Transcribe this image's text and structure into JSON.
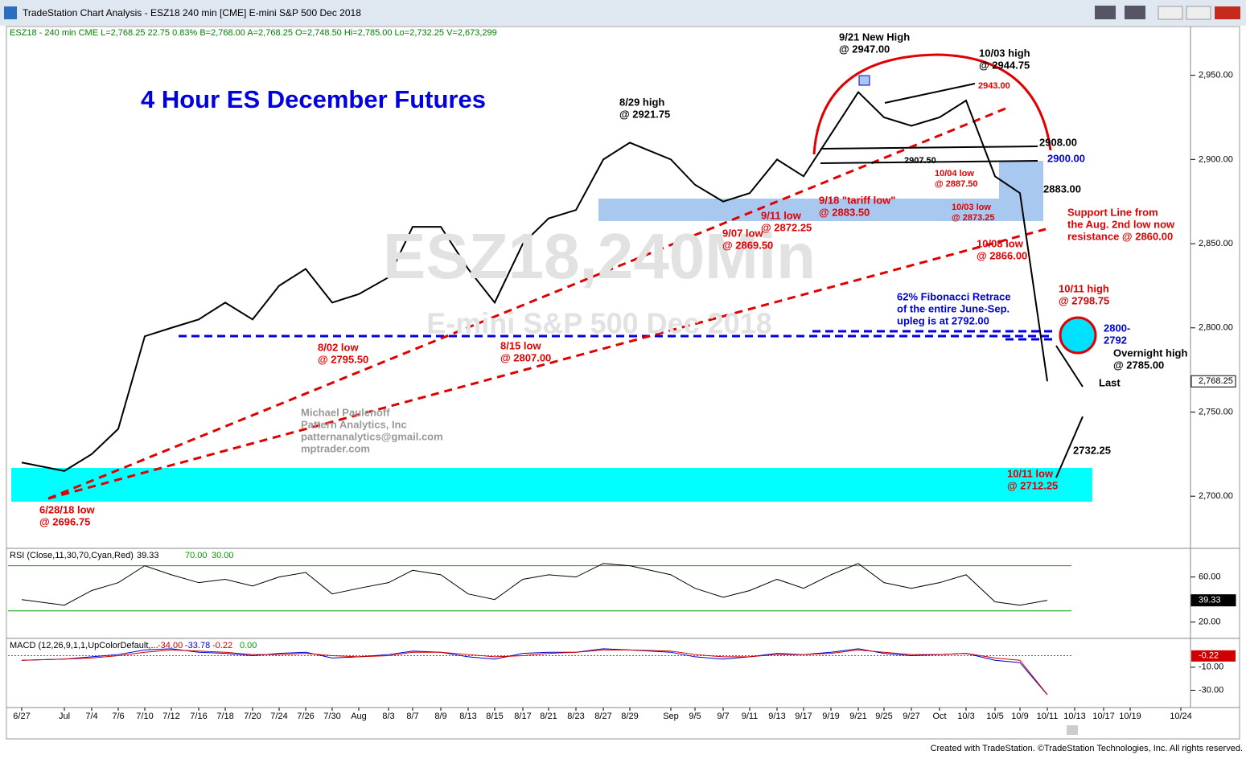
{
  "window": {
    "title": "TradeStation Chart Analysis - ESZ18 240 min [CME] E-mini S&P 500 Dec 2018",
    "footer": "Created with TradeStation. ©TradeStation Technologies, Inc. All rights reserved."
  },
  "chart_data": [
    {
      "type": "line",
      "name": "price",
      "header": "ESZ18 - 240 min  CME  L=2,768.25  22.75  0.83%  B=2,768.00  A=2,768.25  O=2,748.50  Hi=2,785.00  Lo=2,732.25  V=2,673,299",
      "title": "4 Hour ES December Futures",
      "watermark": [
        "ESZ18,240Min",
        "E-mini S&P 500 Dec 2018"
      ],
      "categories": [
        "6/27",
        "Jul",
        "7/4",
        "7/6",
        "7/10",
        "7/12",
        "7/16",
        "7/18",
        "7/20",
        "7/24",
        "7/26",
        "7/30",
        "Aug",
        "8/3",
        "8/7",
        "8/9",
        "8/13",
        "8/15",
        "8/17",
        "8/21",
        "8/23",
        "8/27",
        "8/29",
        "Sep",
        "9/5",
        "9/7",
        "9/11",
        "9/13",
        "9/17",
        "9/19",
        "9/21",
        "9/25",
        "9/27",
        "Oct",
        "10/3",
        "10/5",
        "10/9",
        "10/11",
        "10/13",
        "10/17",
        "10/19",
        "10/24"
      ],
      "series": [
        {
          "name": "ESZ18",
          "color": "#000000",
          "values": [
            2720,
            2715,
            2725,
            2740,
            2795,
            2800,
            2805,
            2815,
            2805,
            2825,
            2835,
            2815,
            2820,
            2830,
            2860,
            2860,
            2835,
            2815,
            2850,
            2865,
            2870,
            2900,
            2910,
            2900,
            2885,
            2875,
            2880,
            2900,
            2890,
            2915,
            2940,
            2925,
            2920,
            2925,
            2935,
            2890,
            2880,
            2768.25,
            null,
            null,
            null,
            null
          ]
        }
      ],
      "last": {
        "value": 2768.25,
        "label": "2,768.25"
      },
      "ylim": [
        2670,
        2978
      ],
      "yticks": [
        {
          "value": 2700,
          "label": "2,700.00"
        },
        {
          "value": 2750,
          "label": "2,750.00"
        },
        {
          "value": 2800,
          "label": "2,800.00"
        },
        {
          "value": 2850,
          "label": "2,850.00"
        },
        {
          "value": 2900,
          "label": "2,900.00"
        },
        {
          "value": 2950,
          "label": "2,950.00"
        }
      ],
      "annotations": [
        {
          "lines": [
            "9/21 New High",
            "@ 2947.00"
          ],
          "color": "#000000"
        },
        {
          "lines": [
            "10/03 high",
            "@ 2944.75"
          ],
          "color": "#000000"
        },
        {
          "lines": [
            "8/29 high",
            "@ 2921.75"
          ],
          "color": "#000000"
        },
        {
          "lines": [
            "2943.00"
          ],
          "color": "#e00000"
        },
        {
          "lines": [
            "2908.00"
          ],
          "color": "#000000"
        },
        {
          "lines": [
            "2900.00"
          ],
          "color": "#0000e0"
        },
        {
          "lines": [
            "2907.50"
          ],
          "color": "#000000"
        },
        {
          "lines": [
            "10/04 low",
            "@ 2887.50"
          ],
          "color": "#e00000"
        },
        {
          "lines": [
            "2883.00"
          ],
          "color": "#000000"
        },
        {
          "lines": [
            "9/18 \"tariff low\"",
            "@ 2883.50"
          ],
          "color": "#e00000"
        },
        {
          "lines": [
            "9/11 low",
            "@ 2872.25"
          ],
          "color": "#e00000"
        },
        {
          "lines": [
            "9/07 low",
            "@ 2869.50"
          ],
          "color": "#e00000"
        },
        {
          "lines": [
            "10/03 low",
            "@ 2873.25"
          ],
          "color": "#e00000"
        },
        {
          "lines": [
            "Support Line from",
            "the Aug. 2nd low now",
            "resistance @ 2860.00"
          ],
          "color": "#e00000"
        },
        {
          "lines": [
            "10/08 low",
            "@ 2866.00"
          ],
          "color": "#e00000"
        },
        {
          "lines": [
            "62% Fibonacci Retrace",
            "of the entire June-Sep.",
            "upleg is at 2792.00"
          ],
          "color": "#0000e0"
        },
        {
          "lines": [
            "10/11 high",
            "@ 2798.75"
          ],
          "color": "#e00000"
        },
        {
          "lines": [
            "2800-",
            "2792"
          ],
          "color": "#0000e0"
        },
        {
          "lines": [
            "Overnight high",
            "@ 2785.00"
          ],
          "color": "#000000"
        },
        {
          "lines": [
            "Last"
          ],
          "color": "#000000"
        },
        {
          "lines": [
            "2732.25"
          ],
          "color": "#000000"
        },
        {
          "lines": [
            "10/11 low",
            "@ 2712.25"
          ],
          "color": "#e00000"
        },
        {
          "lines": [
            "8/02 low",
            "@ 2795.50"
          ],
          "color": "#e00000"
        },
        {
          "lines": [
            "8/15 low",
            "@ 2807.00"
          ],
          "color": "#e00000"
        },
        {
          "lines": [
            "6/28/18 low",
            "@ 2696.75"
          ],
          "color": "#e00000"
        },
        {
          "lines": [
            "Michael Paulenoff",
            "Pattern Analytics, Inc",
            "patternanalytics@gmail.com",
            "mptrader.com"
          ],
          "color": "#999999"
        }
      ]
    },
    {
      "type": "line",
      "name": "rsi",
      "header": "RSI (Close,11,30,70,Cyan,Red)",
      "series": [
        {
          "name": "RSI",
          "color": "#000000",
          "values": [
            40,
            35,
            48,
            55,
            70,
            62,
            55,
            58,
            52,
            60,
            64,
            45,
            50,
            55,
            66,
            62,
            45,
            40,
            58,
            62,
            60,
            72,
            70,
            62,
            50,
            42,
            48,
            58,
            50,
            62,
            72,
            55,
            50,
            55,
            62,
            38,
            35,
            39.33,
            null,
            null,
            null,
            null
          ]
        }
      ],
      "last": {
        "value": 39.33,
        "label": "39.33"
      },
      "levels": [
        {
          "value": 70,
          "label": "70.00",
          "color": "#00a000"
        },
        {
          "value": 30,
          "label": "30.00",
          "color": "#00a000"
        }
      ],
      "ylim": [
        7,
        84
      ],
      "yticks": [
        {
          "value": 20,
          "label": "20.00"
        },
        {
          "value": 60,
          "label": "60.00"
        }
      ]
    },
    {
      "type": "line",
      "name": "macd",
      "header": "MACD (12,26,9,1,1,UpColorDefault,...",
      "series": [
        {
          "name": "MACD",
          "color": "#0000d0",
          "values": [
            -4,
            -3,
            -1,
            1,
            5,
            6,
            3,
            2,
            0,
            2,
            3,
            -2,
            -1,
            1,
            4,
            3,
            -1,
            -3,
            2,
            3,
            3,
            6,
            5,
            3,
            -1,
            -3,
            -1,
            2,
            1,
            3,
            6,
            2,
            0,
            1,
            2,
            -4,
            -6,
            -34,
            null,
            null,
            null,
            null
          ]
        },
        {
          "name": "Signal",
          "color": "#d00000",
          "values": [
            -4,
            -3,
            -2,
            0,
            3,
            5,
            4,
            3,
            1,
            1,
            2,
            0,
            -1,
            0,
            3,
            3,
            1,
            -1,
            0,
            2,
            3,
            5,
            5,
            4,
            1,
            -1,
            -1,
            1,
            1,
            2,
            5,
            3,
            1,
            1,
            2,
            -2,
            -4,
            -33.78,
            null,
            null,
            null,
            null
          ]
        }
      ],
      "readouts": [
        {
          "value": -34,
          "label": "-34.00",
          "color": "#d00000"
        },
        {
          "value": -33.78,
          "label": "-33.78",
          "color": "#0000d0"
        },
        {
          "value": -0.22,
          "label": "-0.22",
          "color": "#d00000"
        },
        {
          "value": 0,
          "label": "0.00",
          "color": "#00a000"
        }
      ],
      "ylim": [
        -43.6,
        13.6
      ],
      "yticks": [
        {
          "value": -30,
          "label": "-30.00"
        },
        {
          "value": -10,
          "label": "-10.00"
        }
      ]
    }
  ]
}
